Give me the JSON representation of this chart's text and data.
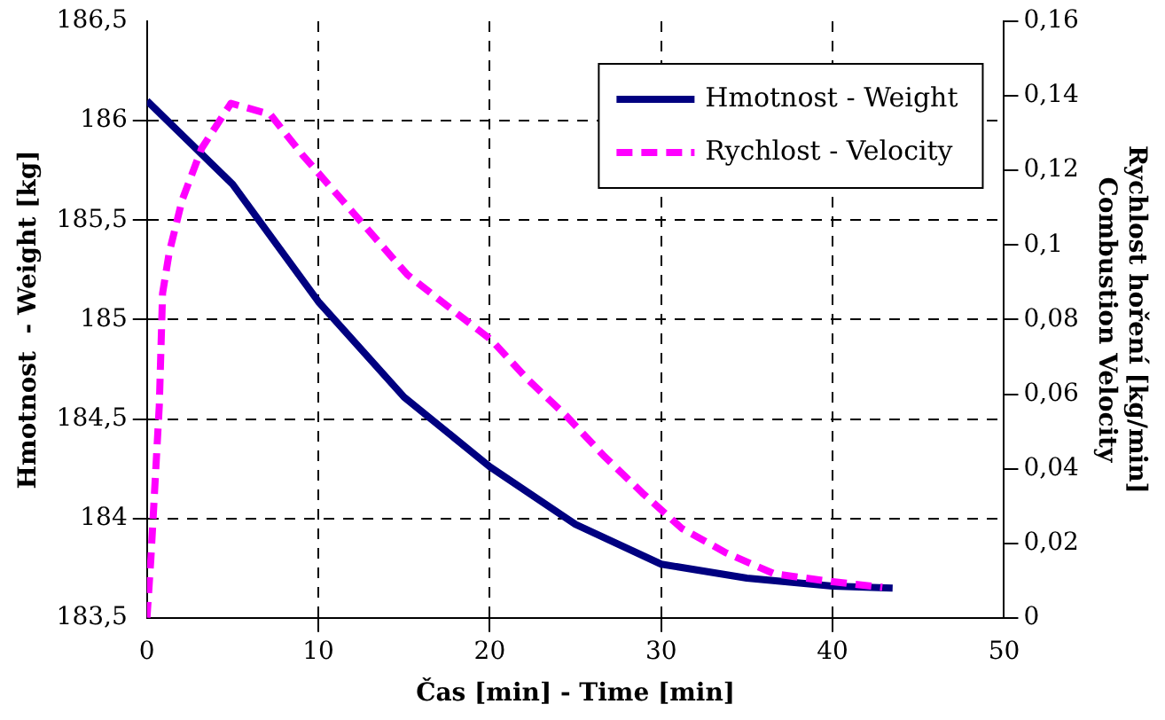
{
  "chart_data": {
    "type": "line",
    "xlabel": "Čas [min] - Time [min]",
    "ylabel": "Hmotnost  - Weight [kg]",
    "y2label": "Rychlost hoření [kg/min]\nCombustion Velocity",
    "xlim": [
      0,
      50
    ],
    "xticks": [
      0,
      10,
      20,
      30,
      40,
      50
    ],
    "ylim": [
      183.5,
      186.5
    ],
    "yticks": [
      {
        "value": 183.5,
        "label": "183,5"
      },
      184,
      {
        "value": 184.5,
        "label": "184,5"
      },
      185,
      {
        "value": 185.5,
        "label": "185,5"
      },
      186,
      {
        "value": 186.5,
        "label": "186,5"
      }
    ],
    "y2lim": [
      0,
      0.16
    ],
    "y2ticks": [
      0,
      {
        "value": 0.02,
        "label": "0,02"
      },
      {
        "value": 0.04,
        "label": "0,04"
      },
      {
        "value": 0.06,
        "label": "0,06"
      },
      {
        "value": 0.08,
        "label": "0,08"
      },
      {
        "value": 0.1,
        "label": "0,1"
      },
      {
        "value": 0.12,
        "label": "0,12"
      },
      {
        "value": 0.14,
        "label": "0,14"
      },
      {
        "value": 0.16,
        "label": "0,16"
      }
    ],
    "grid": true,
    "legend": "top right",
    "marker": "none",
    "series": [
      {
        "name": "Hmotnost - Weight",
        "color": "#000080",
        "line_style": "solid",
        "x": [
          0,
          5,
          10,
          15,
          20,
          25,
          30,
          35,
          40,
          43.5
        ],
        "values": [
          186.1,
          185.68,
          185.09,
          184.61,
          184.26,
          183.97,
          183.77,
          183.7,
          183.66,
          183.65
        ]
      },
      {
        "name": "Rychlost - Velocity",
        "color": "#ff00ff",
        "line_style": "dashed",
        "axis": "y2",
        "x": [
          0,
          0.23,
          0.72,
          0.91,
          1.3,
          2.05,
          3.2,
          4.9,
          7.2,
          9.1,
          11.2,
          13.1,
          15.2,
          17.7,
          20.1,
          22.2,
          24.5,
          26.6,
          28.9,
          31.2,
          33.8,
          36.6,
          40,
          42.9
        ],
        "values": [
          0,
          0.016,
          0.057,
          0.087,
          0.098,
          0.112,
          0.126,
          0.138,
          0.135,
          0.124,
          0.113,
          0.103,
          0.092,
          0.083,
          0.0745,
          0.064,
          0.054,
          0.0437,
          0.0335,
          0.024,
          0.0174,
          0.0118,
          0.0097,
          0.0082
        ]
      }
    ]
  }
}
